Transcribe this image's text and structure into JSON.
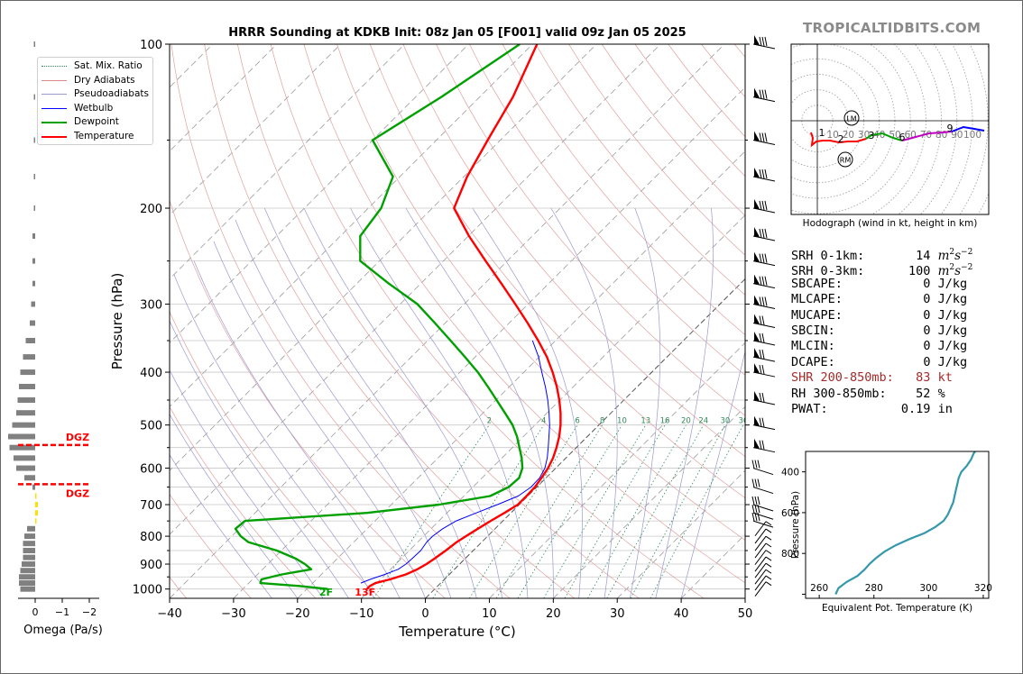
{
  "brand": "TROPICALTIDBITS.COM",
  "title": "HRRR Sounding at KDKB Init: 08z Jan 05 [F001] valid 09z Jan 05 2025",
  "legend": [
    {
      "label": "Sat. Mix. Ratio",
      "color": "#2e8b57",
      "style": "dotted"
    },
    {
      "label": "Dry Adiabats",
      "color": "#d98c8c",
      "style": "solid"
    },
    {
      "label": "Pseudoadiabats",
      "color": "#9a9ac8",
      "style": "solid"
    },
    {
      "label": "Wetbulb",
      "color": "#0000ff",
      "style": "solid"
    },
    {
      "label": "Dewpoint",
      "color": "#00a000",
      "style": "solid"
    },
    {
      "label": "Temperature",
      "color": "#ff0000",
      "style": "solid"
    }
  ],
  "params": [
    {
      "label": "SRH 0-1km:",
      "value": "14",
      "unit": "m2s-2",
      "color": "#000000"
    },
    {
      "label": "SRH 0-3km:",
      "value": "100",
      "unit": "m2s-2",
      "color": "#000000"
    },
    {
      "label": "SBCAPE:",
      "value": "0",
      "unit": "J/kg",
      "color": "#000000"
    },
    {
      "label": "MLCAPE:",
      "value": "0",
      "unit": "J/kg",
      "color": "#000000"
    },
    {
      "label": "MUCAPE:",
      "value": "0",
      "unit": "J/kg",
      "color": "#000000"
    },
    {
      "label": "SBCIN:",
      "value": "0",
      "unit": "J/kg",
      "color": "#000000"
    },
    {
      "label": "MLCIN:",
      "value": "0",
      "unit": "J/kg",
      "color": "#000000"
    },
    {
      "label": "DCAPE:",
      "value": "0",
      "unit": "J/kg",
      "color": "#000000"
    },
    {
      "label": "SHR 200-850mb:",
      "value": "83",
      "unit": "kt",
      "color": "#a52a2a"
    },
    {
      "label": "RH 300-850mb:",
      "value": "52",
      "unit": "%",
      "color": "#000000"
    },
    {
      "label": "PWAT:",
      "value": "0.19",
      "unit": "in",
      "color": "#000000"
    }
  ],
  "chart_data": [
    {
      "type": "line",
      "name": "skew-t",
      "title": "HRRR Sounding at KDKB Init: 08z Jan 05 [F001] valid 09z Jan 05 2025",
      "xlabel": "Temperature (°C)",
      "ylabel": "Pressure (hPa)",
      "xlim": [
        -40,
        50
      ],
      "ylim": [
        1040,
        100
      ],
      "log_y": true,
      "x_ticks": [
        -40,
        -30,
        -20,
        -10,
        0,
        10,
        20,
        30,
        40,
        50
      ],
      "x_tick_labels": [
        "−40",
        "−30",
        "−20",
        "−10",
        "0",
        "10",
        "20",
        "30",
        "40",
        "50"
      ],
      "y_ticks": [
        100,
        200,
        300,
        400,
        500,
        600,
        700,
        800,
        900,
        1000
      ],
      "mixing_ratio_labels": [
        "2",
        "4",
        "6",
        "8",
        "10",
        "13",
        "16",
        "20",
        "24",
        "30",
        "36"
      ],
      "surface_labels": {
        "dewpoint": "2F",
        "temperature": "13F"
      },
      "series": [
        {
          "name": "Temperature",
          "color": "#ff0000",
          "p": [
            1000,
            987,
            975,
            960,
            940,
            920,
            900,
            880,
            850,
            820,
            800,
            775,
            750,
            725,
            700,
            675,
            650,
            625,
            600,
            575,
            550,
            525,
            500,
            475,
            450,
            425,
            400,
            375,
            350,
            325,
            300,
            275,
            250,
            225,
            200,
            175,
            150,
            125,
            100
          ],
          "t": [
            -10.6,
            -10.6,
            -10.2,
            -8.5,
            -6.8,
            -5.8,
            -5.2,
            -4.8,
            -4.3,
            -3.9,
            -3.4,
            -2.7,
            -1.9,
            -1.0,
            -0.2,
            -0.2,
            -0.3,
            -0.7,
            -1.2,
            -2.0,
            -3.1,
            -4.4,
            -6.0,
            -7.9,
            -10.1,
            -12.6,
            -15.5,
            -18.8,
            -22.7,
            -27.1,
            -32.0,
            -37.4,
            -43.4,
            -49.9,
            -56.6,
            -59.5,
            -62.0,
            -64.8,
            -69.3
          ]
        },
        {
          "name": "Dewpoint",
          "color": "#00a000",
          "p": [
            1000,
            987,
            975,
            960,
            940,
            920,
            900,
            880,
            850,
            820,
            800,
            775,
            750,
            725,
            700,
            675,
            650,
            625,
            600,
            575,
            550,
            525,
            500,
            475,
            450,
            425,
            400,
            375,
            350,
            325,
            300,
            275,
            250,
            225,
            200,
            175,
            150,
            125,
            100
          ],
          "t": [
            -16.7,
            -21.7,
            -28.2,
            -28.6,
            -26.2,
            -22.4,
            -24.2,
            -26.4,
            -30.7,
            -36.5,
            -38.6,
            -40.6,
            -40.3,
            -22.5,
            -12.5,
            -5.9,
            -4.4,
            -4.2,
            -5.2,
            -6.9,
            -8.9,
            -11.0,
            -13.5,
            -16.6,
            -19.9,
            -23.4,
            -27.2,
            -31.6,
            -36.4,
            -41.6,
            -47.3,
            -55.0,
            -63.0,
            -66.9,
            -68.0,
            -71.1,
            -80.0,
            -76.0,
            -72.0
          ]
        },
        {
          "name": "Wetbulb",
          "color": "#0000ff",
          "p": [
            975,
            960,
            940,
            920,
            900,
            880,
            850,
            820,
            800,
            775,
            750,
            725,
            700,
            675,
            650,
            625,
            600,
            575,
            550,
            525,
            500,
            475,
            450,
            425,
            400,
            375,
            350
          ],
          "t": [
            -12.5,
            -11.6,
            -10.1,
            -8.8,
            -8.4,
            -8.3,
            -8.2,
            -8.6,
            -8.6,
            -8.2,
            -7.3,
            -5.4,
            -3.4,
            -1.5,
            -0.9,
            -1.0,
            -1.7,
            -2.9,
            -4.4,
            -6.0,
            -7.7,
            -9.7,
            -11.9,
            -14.4,
            -17.2,
            -20.1,
            -23.6
          ]
        }
      ]
    },
    {
      "type": "bar",
      "name": "omega",
      "xlabel": "Omega (Pa/s)",
      "x_ticks": [
        0,
        -1,
        -2
      ],
      "x_tick_labels": [
        "0",
        "−1",
        "−2"
      ],
      "annotations": [
        {
          "text": "DGZ",
          "p": 544
        },
        {
          "text": "DGZ",
          "p": 642
        }
      ],
      "p": [
        1000,
        975,
        950,
        925,
        900,
        875,
        850,
        825,
        800,
        775,
        750,
        725,
        700,
        675,
        650,
        625,
        600,
        575,
        550,
        525,
        500,
        475,
        450,
        425,
        400,
        375,
        350,
        325,
        300,
        275,
        250,
        225,
        200,
        175,
        150,
        125,
        100
      ],
      "omega": [
        0.55,
        0.6,
        0.6,
        0.55,
        0.5,
        0.45,
        0.45,
        0.45,
        0.4,
        0.3,
        -0.05,
        -0.1,
        -0.1,
        -0.05,
        0.1,
        0.4,
        0.7,
        0.8,
        0.95,
        1.0,
        0.85,
        0.7,
        0.65,
        0.6,
        0.55,
        0.45,
        0.35,
        0.2,
        0.15,
        0.1,
        0.1,
        0.1,
        0.05,
        0.05,
        0.05,
        0.05,
        0.05
      ]
    },
    {
      "type": "line",
      "name": "hodograph",
      "xlabel": "Hodograph (wind in kt, height in km)",
      "ring_labels": [
        "10",
        "20",
        "30",
        "40",
        "50",
        "60",
        "70",
        "80",
        "90",
        "100"
      ],
      "height_labels": [
        "1",
        "2",
        "3",
        "6",
        "9"
      ],
      "storm_motion_labels": [
        "LM",
        "RM"
      ]
    },
    {
      "type": "line",
      "name": "theta-e",
      "xlabel": "Equivalent Pot. Temperature (K)",
      "ylabel": "Pressure (hPa)",
      "xlim": [
        255,
        322
      ],
      "ylim": [
        1020,
        300
      ],
      "x_ticks": [
        260,
        280,
        300,
        320
      ],
      "y_ticks": [
        400,
        600,
        800,
        1000
      ],
      "y_tick_labels": [
        "400",
        "600",
        "800",
        ""
      ],
      "series": [
        {
          "name": "Theta-e",
          "color": "#3399aa",
          "p": [
            1000,
            970,
            940,
            910,
            880,
            850,
            820,
            790,
            760,
            730,
            700,
            670,
            640,
            610,
            580,
            550,
            520,
            490,
            460,
            430,
            400,
            370,
            340,
            310,
            300
          ],
          "theta_e": [
            266,
            267,
            270,
            274,
            276.5,
            278.5,
            281,
            284,
            288,
            293,
            298.5,
            302.5,
            305.5,
            307,
            308,
            309,
            309.5,
            310,
            310.5,
            311,
            312,
            314,
            315.5,
            316.5,
            317
          ]
        }
      ]
    }
  ]
}
